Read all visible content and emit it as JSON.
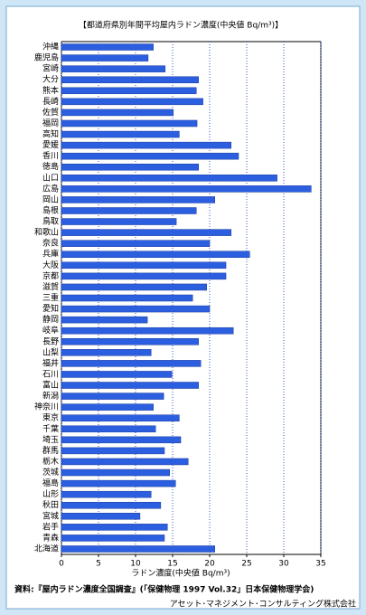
{
  "chart_data": {
    "type": "hbar",
    "title": "【都道府県別年間平均屋内ラドン濃度(中央値 Bq/m³)】",
    "x_label": "ラドン濃度(中央値 Bq/m³)",
    "source": "資料:『屋内ラドン濃度全国調査』(「保健物理 1997 Vol.32」日本保健物理学会)",
    "credit": "アセット･マネジメント･コンサルティング株式会社",
    "categories": [
      "沖縄",
      "鹿児島",
      "宮崎",
      "大分",
      "熊本",
      "長崎",
      "佐賀",
      "福岡",
      "高知",
      "愛媛",
      "香川",
      "徳島",
      "山口",
      "広島",
      "岡山",
      "島根",
      "鳥取",
      "和歌山",
      "奈良",
      "兵庫",
      "大阪",
      "京都",
      "滋賀",
      "三重",
      "愛知",
      "静岡",
      "岐阜",
      "長野",
      "山梨",
      "福井",
      "石川",
      "富山",
      "新潟",
      "神奈川",
      "東京",
      "千葉",
      "埼玉",
      "群馬",
      "栃木",
      "茨城",
      "福島",
      "山形",
      "秋田",
      "宮城",
      "岩手",
      "青森",
      "北海道"
    ],
    "values": [
      12.4,
      11.7,
      14.0,
      18.5,
      18.2,
      19.1,
      15.1,
      18.3,
      15.9,
      22.9,
      23.9,
      18.5,
      29.1,
      33.7,
      20.7,
      18.2,
      15.5,
      22.9,
      20.0,
      25.4,
      22.2,
      22.2,
      19.6,
      17.7,
      20.0,
      11.6,
      23.2,
      18.5,
      12.1,
      18.8,
      14.9,
      18.5,
      13.8,
      12.4,
      15.9,
      12.7,
      16.1,
      13.9,
      17.1,
      14.6,
      15.4,
      12.1,
      13.4,
      10.6,
      14.3,
      13.9,
      20.7
    ],
    "color": "#2b5fe0",
    "xlim": [
      0,
      35
    ],
    "xticks": [
      0,
      5,
      10,
      15,
      20,
      25,
      30,
      35
    ],
    "grid": true
  }
}
